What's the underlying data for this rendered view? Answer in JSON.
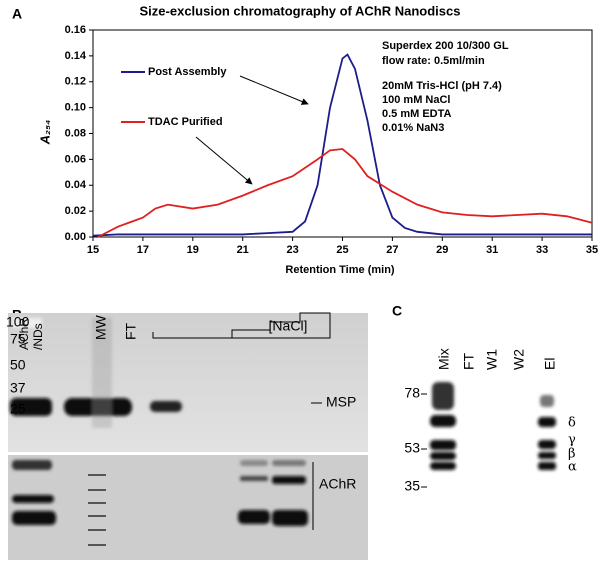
{
  "chart_data": {
    "type": "line",
    "title": "Size-exclusion chromatography of AChR Nanodiscs",
    "x_label": "Retention Time (min)",
    "y_label": "A₂₅₄",
    "xlim": [
      15,
      35
    ],
    "xticks": [
      15,
      17,
      19,
      21,
      23,
      25,
      27,
      29,
      31,
      33,
      35
    ],
    "ylim": [
      0,
      0.16
    ],
    "yticks": [
      {
        "value": 0,
        "label": "0.00"
      },
      {
        "value": 0.02,
        "label": "0.02"
      },
      {
        "value": 0.04,
        "label": "0.04"
      },
      {
        "value": 0.06,
        "label": "0.06"
      },
      {
        "value": 0.08,
        "label": "0.08"
      },
      {
        "value": 0.1,
        "label": "0.10"
      },
      {
        "value": 0.12,
        "label": "0.12"
      },
      {
        "value": 0.14,
        "label": "0.14"
      },
      {
        "value": 0.16,
        "label": "0.16"
      }
    ],
    "annotations": [
      "Superdex 200 10/300 GL",
      "flow rate: 0.5ml/min",
      "20mM Tris-HCl (pH 7.4)",
      "100 mM NaCl",
      "0.5 mM EDTA",
      "0.01% NaN3"
    ],
    "series": [
      {
        "name": "Post Assembly",
        "color": "#1c1c8c",
        "x": [
          15,
          16,
          17,
          18,
          19,
          20,
          21,
          22,
          23,
          23.5,
          24,
          24.5,
          25,
          25.2,
          25.5,
          26,
          26.5,
          27,
          27.5,
          28,
          29,
          30,
          31,
          32,
          33,
          34,
          35
        ],
        "values": [
          0.001,
          0.002,
          0.002,
          0.002,
          0.002,
          0.002,
          0.002,
          0.003,
          0.004,
          0.012,
          0.04,
          0.1,
          0.138,
          0.141,
          0.13,
          0.09,
          0.04,
          0.015,
          0.007,
          0.004,
          0.002,
          0.002,
          0.002,
          0.002,
          0.002,
          0.002,
          0.002
        ]
      },
      {
        "name": "TDAC Purified",
        "color": "#e02020",
        "x": [
          15.2,
          16,
          17,
          17.5,
          18,
          19,
          20,
          21,
          22,
          23,
          24,
          24.5,
          25,
          25.5,
          26,
          27,
          28,
          29,
          30,
          31,
          32,
          33,
          34,
          35
        ],
        "values": [
          0,
          0.008,
          0.015,
          0.022,
          0.025,
          0.022,
          0.025,
          0.032,
          0.04,
          0.047,
          0.06,
          0.067,
          0.068,
          0.06,
          0.047,
          0.035,
          0.025,
          0.019,
          0.017,
          0.016,
          0.017,
          0.018,
          0.016,
          0.011
        ]
      }
    ]
  },
  "panel_labels": [
    "A",
    "B",
    "C"
  ],
  "gel_b": {
    "lanes": [
      "AChR",
      "/NDs",
      "MW",
      "FT"
    ],
    "salt": "[NaCl]",
    "markers": [
      "100",
      "75",
      "50",
      "37",
      "25"
    ],
    "bands": [
      "MSP",
      "AChR"
    ]
  },
  "gel_c": {
    "lanes": [
      "Mix",
      "FT",
      "W1",
      "W2",
      "El"
    ],
    "markers": [
      "78",
      "53",
      "35"
    ],
    "subunits": [
      "δ",
      "γ",
      "β",
      "α"
    ]
  }
}
